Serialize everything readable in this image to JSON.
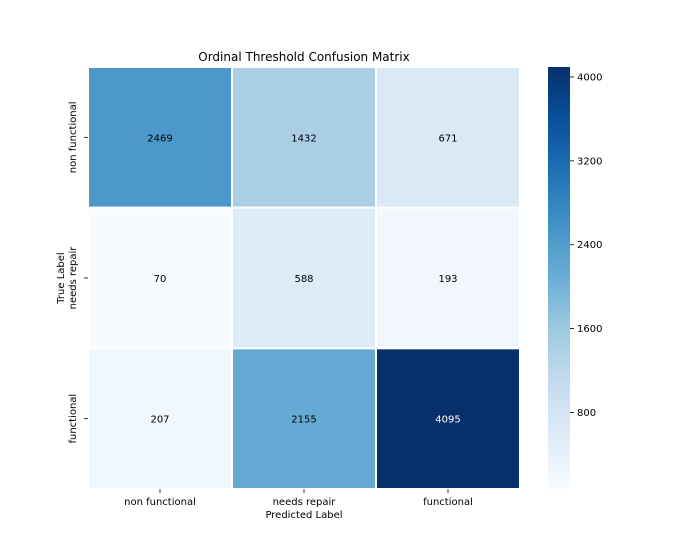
{
  "chart_data": {
    "type": "heatmap",
    "title": "Ordinal Threshold Confusion Matrix",
    "xlabel": "Predicted Label",
    "ylabel": "True Label",
    "x_categories": [
      "non functional",
      "needs repair",
      "functional"
    ],
    "y_categories": [
      "non functional",
      "needs repair",
      "functional"
    ],
    "values": [
      [
        2469,
        1432,
        671
      ],
      [
        70,
        588,
        193
      ],
      [
        207,
        2155,
        4095
      ]
    ],
    "colorbar": {
      "min": 70,
      "max": 4095,
      "ticks": [
        800,
        1600,
        2400,
        3200,
        4000
      ],
      "tick_labels": [
        "800",
        "1600",
        "2400",
        "3200",
        "4000"
      ]
    },
    "colormap": "Blues",
    "colors": {
      "low": "#f7fbff",
      "high": "#08306b",
      "text_light": "#ffffff",
      "text_dark": "#000000"
    }
  }
}
